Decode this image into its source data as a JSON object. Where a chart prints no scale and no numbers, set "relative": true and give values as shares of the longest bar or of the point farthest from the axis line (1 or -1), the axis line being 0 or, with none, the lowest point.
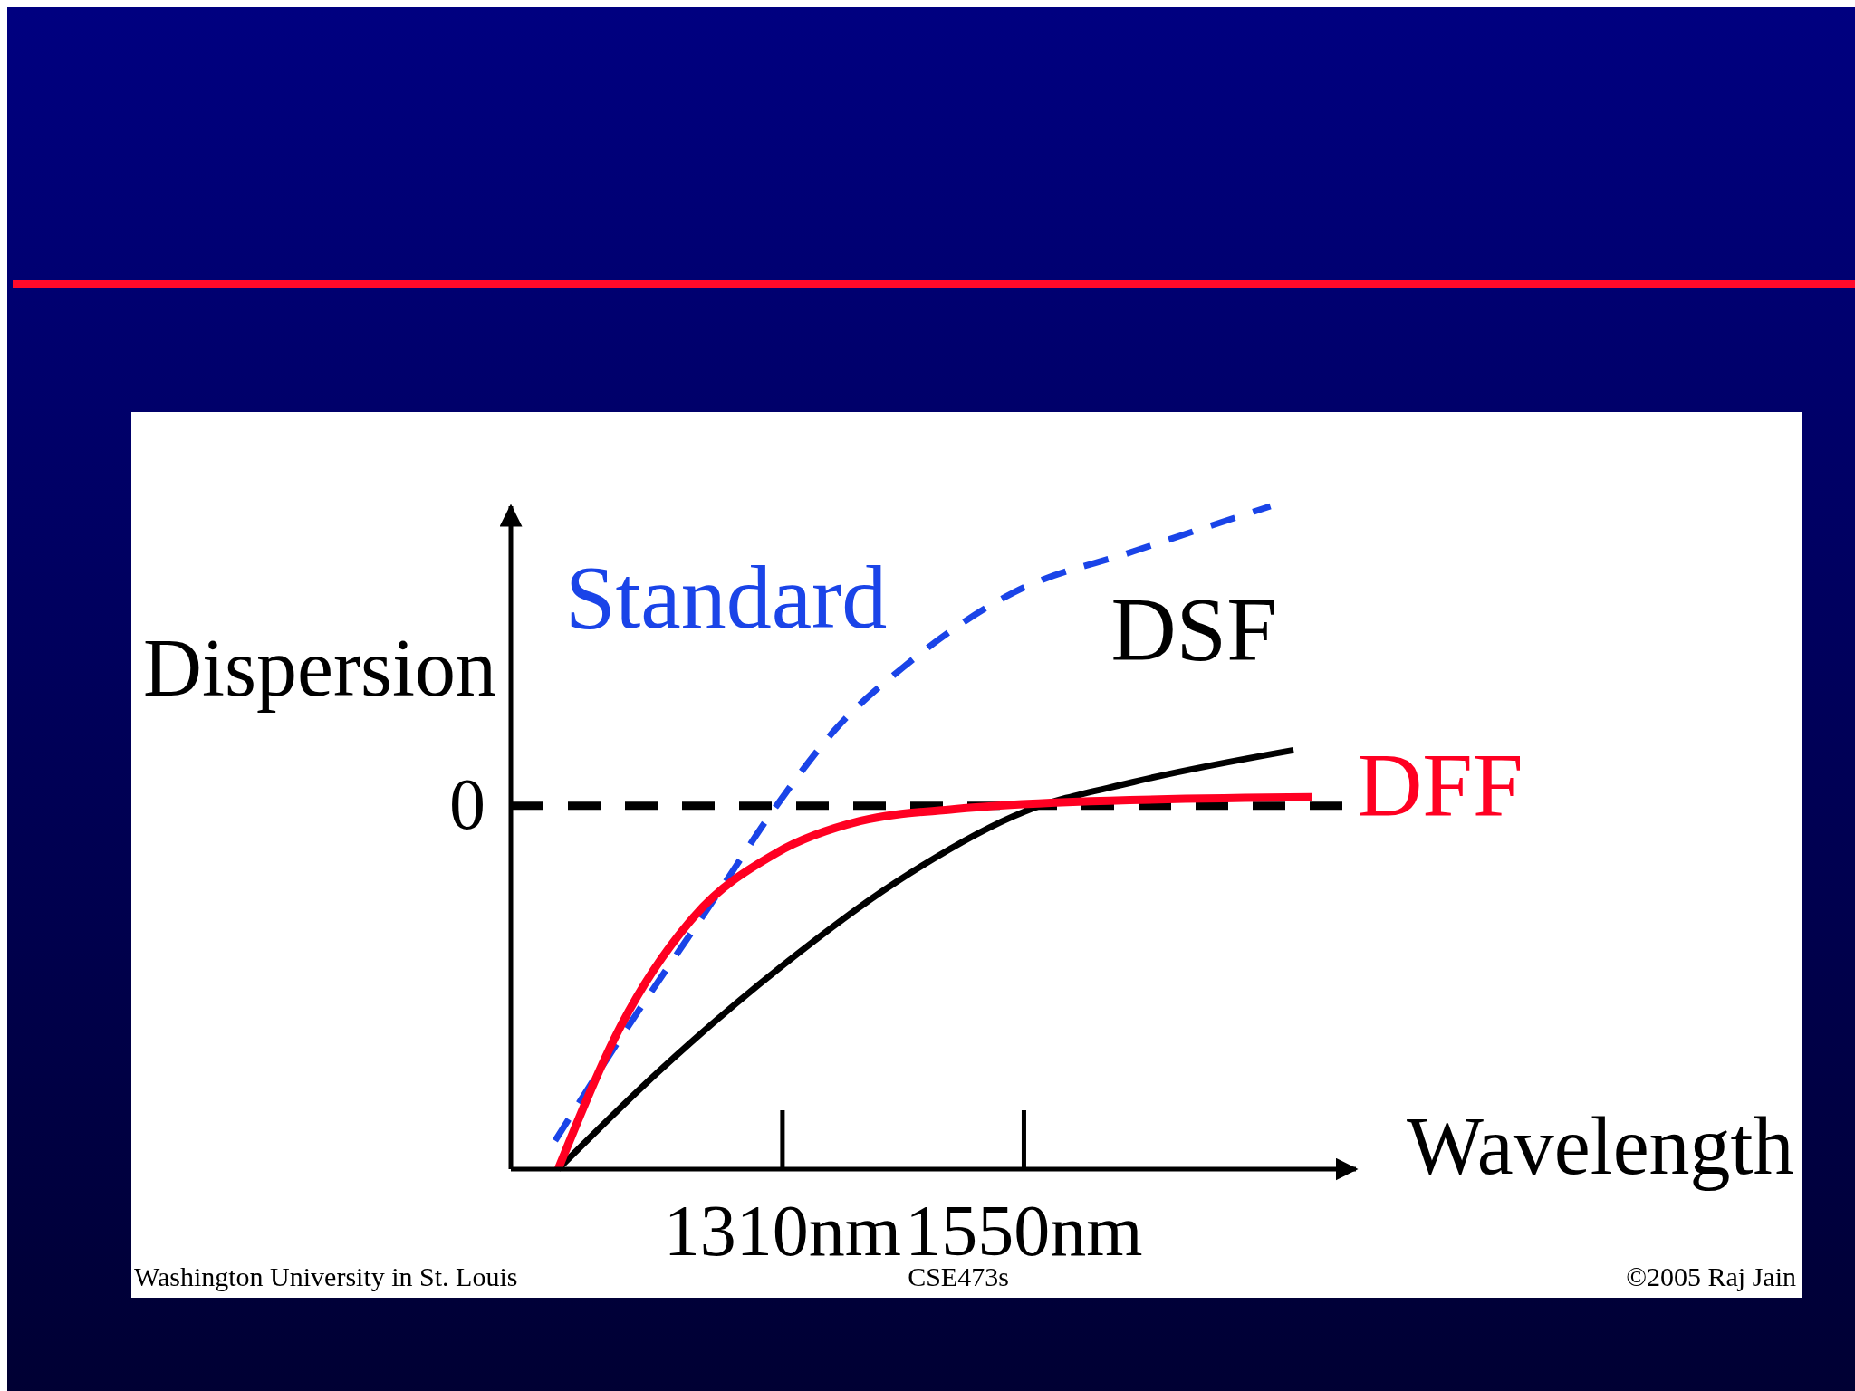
{
  "chart_data": {
    "type": "line",
    "xlabel": "Wavelength",
    "ylabel": "Dispersion",
    "relative": true,
    "xlim": [
      1040,
      1880
    ],
    "xticks": [
      {
        "value": 1310,
        "label": "1310nm"
      },
      {
        "value": 1550,
        "label": "1550nm"
      }
    ],
    "series": [
      {
        "name": "Standard",
        "color": "#1a44e8",
        "line_style": "dashed",
        "x": [
          1084,
          1150,
          1245,
          1304,
          1363,
          1434,
          1540,
          1659,
          1795
        ],
        "values": [
          0.043,
          0.2,
          0.414,
          0.548,
          0.664,
          0.762,
          0.87,
          0.932,
          1
        ]
      },
      {
        "name": "DSF",
        "color": "#000000",
        "line_style": "solid",
        "x": [
          1087,
          1186,
          1310,
          1422,
          1550,
          1659,
          1818
        ],
        "values": [
          0,
          0.146,
          0.307,
          0.432,
          0.539,
          0.584,
          0.632
        ]
      },
      {
        "name": "DFF",
        "color": "#ff0022",
        "line_style": "solid",
        "x": [
          1087,
          1150,
          1221,
          1304,
          1387,
          1481,
          1599,
          1836
        ],
        "values": [
          0,
          0.218,
          0.379,
          0.477,
          0.525,
          0.543,
          0.554,
          0.561
        ]
      }
    ],
    "ref_lines": [
      {
        "axis": "y",
        "value": 0.548,
        "color": "#000000",
        "line_style": "dashed"
      }
    ],
    "legend": false,
    "grid": false,
    "annotations": [
      "0",
      "Washington University in St. Louis",
      "CSE473s",
      "©2005 Raj Jain"
    ]
  }
}
